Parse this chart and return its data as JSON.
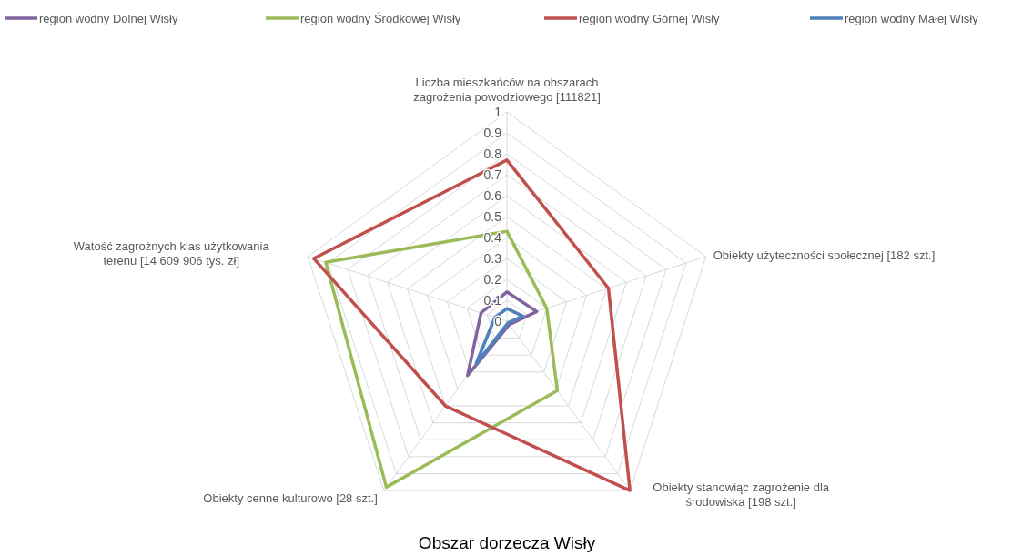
{
  "chart_data": {
    "type": "radar",
    "title": "Obszar dorzecza Wisły",
    "categories": [
      "Liczba mieszkańców na obszarach zagrożenia powodziowego [111821]",
      "Obiekty użyteczności społecznej [182 szt.]",
      "Obiekty stanowiąc zagrożenie dla środowiska [198 szt.]",
      "Obiekty cenne kulturowo [28 szt.]",
      "Watość zagrożnych klas użytkowania terenu [14 609 906 tys. zł]"
    ],
    "series": [
      {
        "name": "region wodny Dolnej Wisły",
        "color": "#8064a2",
        "values": [
          0.14,
          0.15,
          0.02,
          0.32,
          0.13
        ]
      },
      {
        "name": "region wodny Środkowej Wisły",
        "color": "#9bbb59",
        "values": [
          0.43,
          0.2,
          0.41,
          0.98,
          0.91
        ]
      },
      {
        "name": "region wodny Górnej Wisły",
        "color": "#c0504d",
        "values": [
          0.77,
          0.51,
          1.0,
          0.5,
          0.97
        ]
      },
      {
        "name": "region wodny Małej Wisły",
        "color": "#4f81bd",
        "values": [
          0.06,
          0.08,
          0.01,
          0.25,
          0.06
        ]
      }
    ],
    "ylim": [
      0,
      1
    ],
    "yticks": [
      0,
      0.1,
      0.2,
      0.3,
      0.4,
      0.5,
      0.6,
      0.7,
      0.8,
      0.9,
      1
    ],
    "grid": true,
    "legend": "top"
  }
}
